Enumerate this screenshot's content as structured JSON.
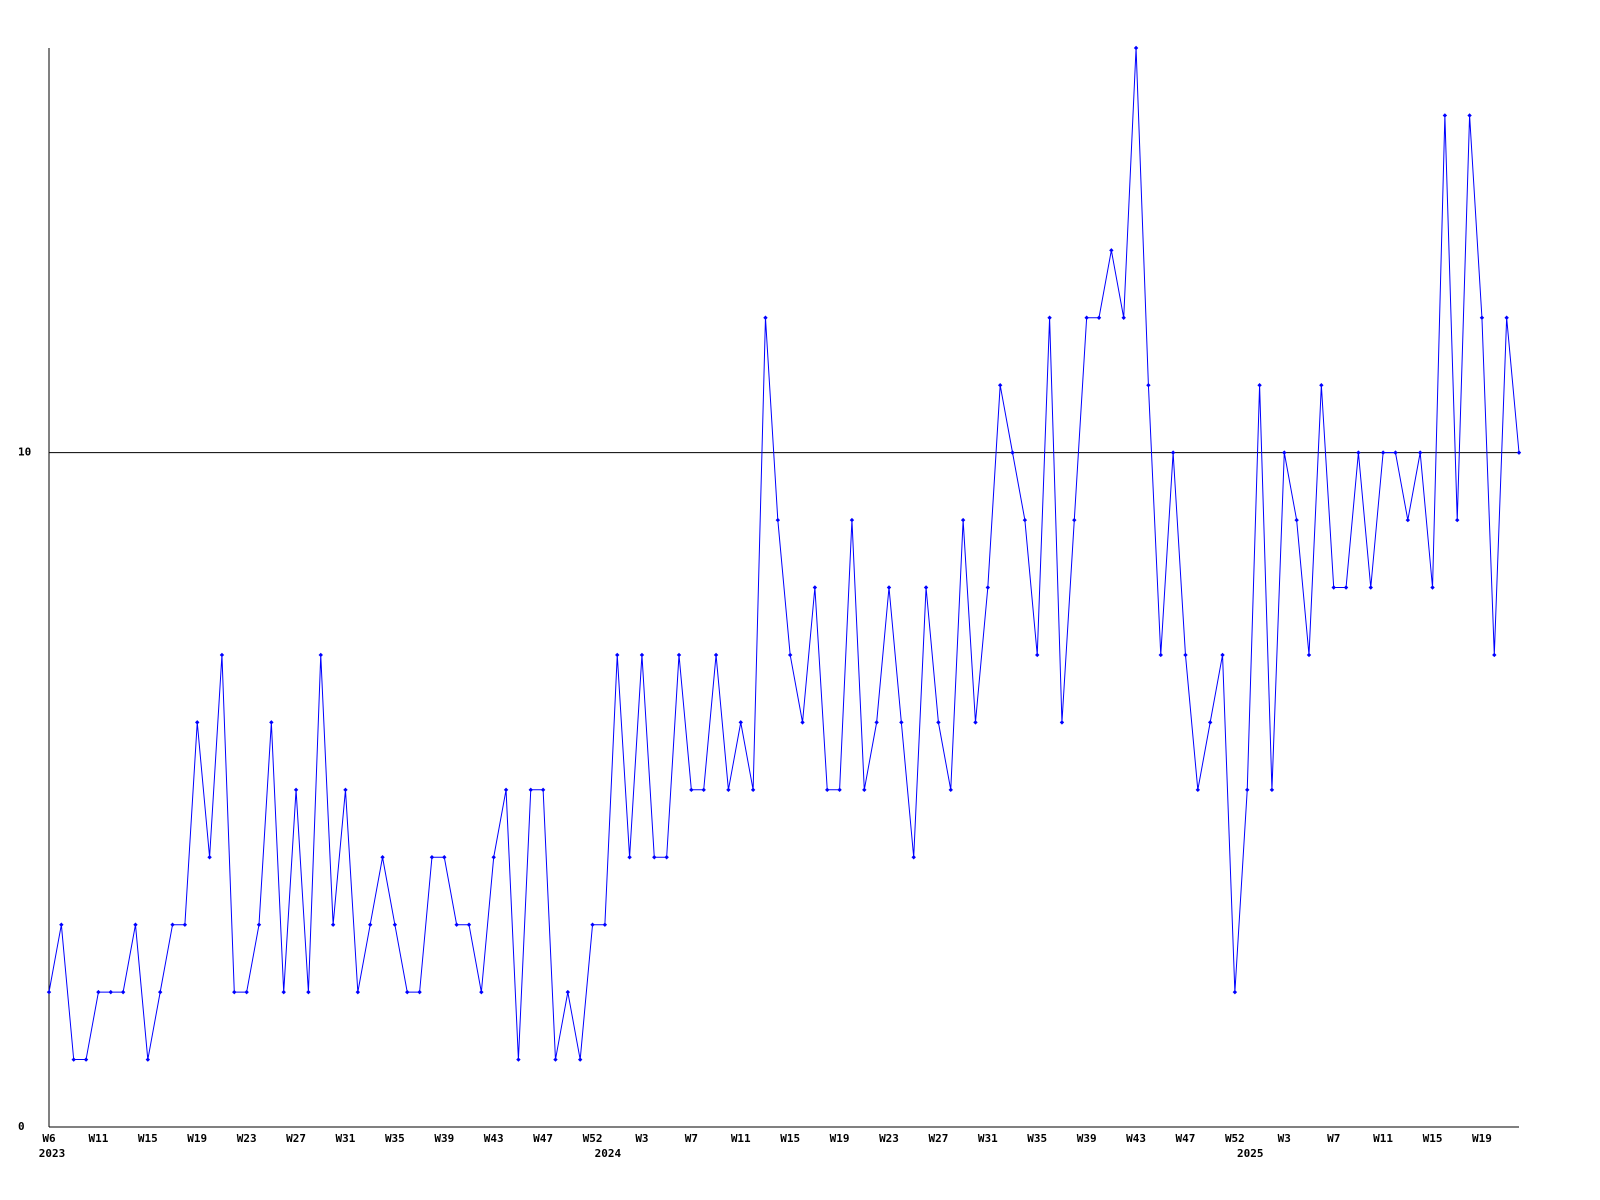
{
  "chart_data": {
    "type": "line",
    "categories": [
      "W6",
      null,
      null,
      null,
      "W11",
      null,
      null,
      null,
      "W15",
      null,
      null,
      null,
      "W19",
      null,
      null,
      null,
      "W23",
      null,
      null,
      null,
      "W27",
      null,
      null,
      null,
      "W31",
      null,
      null,
      null,
      "W35",
      null,
      null,
      null,
      "W39",
      null,
      null,
      null,
      "W43",
      null,
      null,
      null,
      "W47",
      null,
      null,
      null,
      "W52",
      null,
      null,
      null,
      "W3",
      null,
      null,
      null,
      "W7",
      null,
      null,
      null,
      "W11",
      null,
      null,
      null,
      "W15",
      null,
      null,
      null,
      "W19",
      null,
      null,
      null,
      "W23",
      null,
      null,
      null,
      "W27",
      null,
      null,
      null,
      "W31",
      null,
      null,
      null,
      "W35",
      null,
      null,
      null,
      "W39",
      null,
      null,
      null,
      "W43",
      null,
      null,
      null,
      "W47",
      null,
      null,
      null,
      "W52",
      null,
      null,
      null,
      "W3",
      null,
      null,
      null,
      "W7",
      null,
      null,
      null,
      "W11",
      null,
      null,
      null,
      "W15",
      null,
      null,
      null,
      "W19",
      null,
      null,
      null
    ],
    "category_years": [
      "2023",
      null,
      null,
      null,
      null,
      null,
      null,
      null,
      null,
      null,
      null,
      null,
      null,
      null,
      null,
      null,
      null,
      null,
      null,
      null,
      null,
      null,
      null,
      null,
      null,
      null,
      null,
      null,
      null,
      null,
      null,
      null,
      null,
      null,
      null,
      null,
      null,
      null,
      null,
      null,
      null,
      null,
      null,
      null,
      null,
      "2024",
      null,
      null,
      null,
      null,
      null,
      null,
      null,
      null,
      null,
      null,
      null,
      null,
      null,
      null,
      null,
      null,
      null,
      null,
      null,
      null,
      null,
      null,
      null,
      null,
      null,
      null,
      null,
      null,
      null,
      null,
      null,
      null,
      null,
      null,
      null,
      null,
      null,
      null,
      null,
      null,
      null,
      null,
      null,
      null,
      null,
      null,
      null,
      null,
      null,
      null,
      null,
      "2025",
      null,
      null,
      null,
      null,
      null,
      null,
      null,
      null,
      null,
      null,
      null,
      null,
      null,
      null,
      null,
      null,
      null,
      null,
      null,
      null,
      null,
      null
    ],
    "series": [
      {
        "color": "#0000ff",
        "values": [
          2,
          3,
          1,
          1,
          2,
          2,
          2,
          3,
          1,
          2,
          3,
          3,
          6,
          4,
          7,
          2,
          2,
          3,
          6,
          2,
          5,
          2,
          7,
          3,
          5,
          2,
          3,
          4,
          3,
          2,
          2,
          4,
          4,
          3,
          3,
          2,
          4,
          5,
          1,
          5,
          5,
          1,
          2,
          1,
          3,
          3,
          7,
          4,
          7,
          4,
          4,
          7,
          5,
          5,
          7,
          5,
          6,
          5,
          12,
          9,
          7,
          6,
          8,
          5,
          5,
          9,
          5,
          6,
          8,
          6,
          4,
          8,
          6,
          5,
          9,
          6,
          8,
          11,
          10,
          9,
          7,
          12,
          6,
          9,
          12,
          12,
          13,
          12,
          16,
          11,
          7,
          10,
          7,
          5,
          6,
          7,
          2,
          5,
          11,
          5,
          10,
          9,
          7,
          11,
          8,
          8,
          10,
          8,
          10,
          10,
          9,
          10,
          8,
          15,
          9,
          15,
          12,
          7,
          12,
          10
        ]
      }
    ],
    "ylim": [
      0,
      16
    ],
    "yticks": [
      0,
      10
    ],
    "grid": true
  }
}
